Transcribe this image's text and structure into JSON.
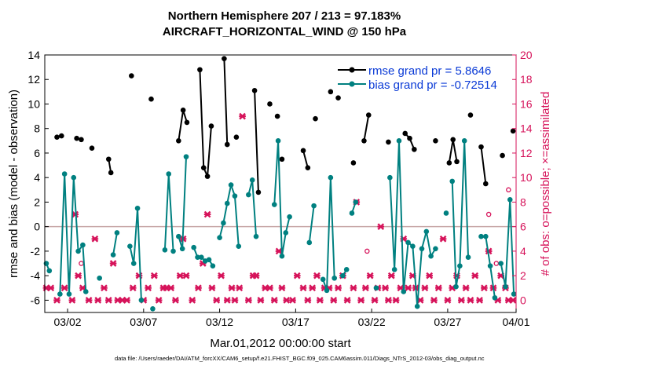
{
  "chart_data": {
    "type": "line",
    "title": "Northern Hemisphere 207 / 213 = 97.183%",
    "subtitle": "AIRCRAFT_HORIZONTAL_WIND @ 150 hPa",
    "xlabel": "Mar.01,2012 00:00:00 start",
    "ylabel": "rmse and bias (model - observation)",
    "ylabel_right": "# of obs: o=possible; ×=assimilated",
    "x_range": [
      0.5,
      31.5
    ],
    "ylim": [
      -7,
      14
    ],
    "ylim_right": [
      -1,
      20
    ],
    "x_ticks": [
      {
        "x": 2,
        "label": "03/02"
      },
      {
        "x": 7,
        "label": "03/07"
      },
      {
        "x": 12,
        "label": "03/12"
      },
      {
        "x": 17,
        "label": "03/17"
      },
      {
        "x": 22,
        "label": "03/22"
      },
      {
        "x": 27,
        "label": "03/27"
      },
      {
        "x": 31.5,
        "label": "04/01"
      }
    ],
    "y_ticks_left": [
      "14",
      "12",
      "10",
      "8",
      "6",
      "4",
      "2",
      "0",
      "-2",
      "-4",
      "-6"
    ],
    "y_tick_values_left": [
      14,
      12,
      10,
      8,
      6,
      4,
      2,
      0,
      -2,
      -4,
      -6
    ],
    "y_ticks_right": [
      "20",
      "18",
      "16",
      "14",
      "12",
      "10",
      "8",
      "6",
      "4",
      "2",
      "0"
    ],
    "y_tick_values_right": [
      20,
      18,
      16,
      14,
      12,
      10,
      8,
      6,
      4,
      2,
      0
    ],
    "legend_position": "top-right",
    "zero_line": true,
    "colors": {
      "rmse": "#000000",
      "bias": "#008080",
      "obs": "#d6135a",
      "zero_line": "#c8a8a8",
      "right_axis": "#d6135a"
    },
    "series": [
      {
        "name": "rmse grand pr = 5.8646",
        "color": "#000000",
        "segments": [
          [
            [
              1.3,
              7.3
            ],
            [
              1.6,
              7.4
            ]
          ],
          [
            [
              2.6,
              7.2
            ],
            [
              2.9,
              7.1
            ]
          ],
          [
            [
              3.6,
              6.4
            ]
          ],
          [
            [
              4.7,
              5.5
            ],
            [
              4.85,
              4.4
            ]
          ],
          [
            [
              6.2,
              12.3
            ]
          ],
          [
            [
              7.5,
              10.4
            ]
          ],
          [
            [
              9.3,
              7.0
            ],
            [
              9.6,
              9.5
            ],
            [
              9.85,
              8.5
            ]
          ],
          [
            [
              10.7,
              12.8
            ],
            [
              10.95,
              4.8
            ],
            [
              11.2,
              4.1
            ],
            [
              11.45,
              8.2
            ]
          ],
          [
            [
              12.3,
              13.7
            ],
            [
              12.5,
              6.7
            ]
          ],
          [
            [
              13.1,
              7.3
            ]
          ],
          [
            [
              14.3,
              11.1
            ],
            [
              14.55,
              2.8
            ]
          ],
          [
            [
              15.3,
              10.0
            ]
          ],
          [
            [
              15.8,
              9.0
            ]
          ],
          [
            [
              16.1,
              5.5
            ]
          ],
          [
            [
              17.5,
              6.2
            ],
            [
              17.8,
              4.8
            ]
          ],
          [
            [
              18.3,
              8.8
            ]
          ],
          [
            [
              19.3,
              11.0
            ]
          ],
          [
            [
              19.8,
              10.5
            ]
          ],
          [
            [
              20.8,
              5.2
            ]
          ],
          [
            [
              21.5,
              7.0
            ],
            [
              21.8,
              9.1
            ]
          ],
          [
            [
              23.1,
              6.9
            ]
          ],
          [
            [
              24.2,
              7.6
            ],
            [
              24.5,
              7.2
            ],
            [
              24.8,
              6.3
            ]
          ],
          [
            [
              26.2,
              7.0
            ]
          ],
          [
            [
              27.1,
              5.2
            ],
            [
              27.35,
              7.1
            ],
            [
              27.6,
              5.3
            ]
          ],
          [
            [
              28.5,
              9.1
            ]
          ],
          [
            [
              29.2,
              6.5
            ],
            [
              29.5,
              3.5
            ]
          ],
          [
            [
              30.6,
              5.8
            ]
          ],
          [
            [
              31.3,
              7.8
            ]
          ]
        ]
      },
      {
        "name": "bias grand pr = -0.72514",
        "color": "#008080",
        "segments": [
          [
            [
              0.6,
              -3.0
            ],
            [
              0.8,
              -3.6
            ]
          ],
          [
            [
              1.5,
              -5.5
            ],
            [
              1.8,
              4.3
            ],
            [
              2.1,
              -5.5
            ],
            [
              2.4,
              4.0
            ],
            [
              2.7,
              -2.0
            ],
            [
              3.0,
              -1.5
            ],
            [
              3.2,
              -5.3
            ]
          ],
          [
            [
              4.1,
              -4.2
            ]
          ],
          [
            [
              5.0,
              -2.3
            ],
            [
              5.25,
              -0.5
            ]
          ],
          [
            [
              6.1,
              -1.6
            ],
            [
              6.35,
              -3.0
            ],
            [
              6.6,
              1.5
            ],
            [
              6.85,
              -6.0
            ]
          ],
          [
            [
              7.6,
              -6.7
            ]
          ],
          [
            [
              8.4,
              -1.9
            ],
            [
              8.65,
              4.3
            ],
            [
              8.95,
              -2.0
            ]
          ],
          [
            [
              9.3,
              -0.8
            ],
            [
              9.55,
              -1.8
            ],
            [
              9.8,
              5.7
            ]
          ],
          [
            [
              10.3,
              -1.7
            ],
            [
              10.55,
              -2.5
            ],
            [
              10.8,
              -2.5
            ],
            [
              11.05,
              -2.8
            ],
            [
              11.3,
              -2.7
            ],
            [
              11.55,
              -3.2
            ]
          ],
          [
            [
              12.0,
              -0.9
            ],
            [
              12.25,
              0.3
            ],
            [
              12.5,
              1.9
            ],
            [
              12.75,
              3.4
            ],
            [
              13.0,
              2.5
            ],
            [
              13.25,
              -1.6
            ]
          ],
          [
            [
              13.9,
              2.6
            ],
            [
              14.15,
              3.8
            ],
            [
              14.4,
              -0.8
            ]
          ],
          [
            [
              15.6,
              1.8
            ],
            [
              15.85,
              7.0
            ],
            [
              16.1,
              -2.4
            ],
            [
              16.35,
              -0.5
            ],
            [
              16.6,
              0.8
            ]
          ],
          [
            [
              17.9,
              -1.3
            ],
            [
              18.2,
              1.7
            ]
          ],
          [
            [
              18.8,
              -4.3
            ],
            [
              19.05,
              -5.2
            ],
            [
              19.3,
              4.0
            ],
            [
              19.55,
              -4.2
            ]
          ],
          [
            [
              20.1,
              -4.0
            ],
            [
              20.35,
              -3.5
            ]
          ],
          [
            [
              20.7,
              1.1
            ],
            [
              20.95,
              2.0
            ]
          ],
          [
            [
              22.3,
              -5.0
            ]
          ],
          [
            [
              23.2,
              4.0
            ],
            [
              23.5,
              -3.5
            ],
            [
              23.8,
              7.0
            ],
            [
              24.1,
              -5.3
            ],
            [
              24.4,
              -1.3
            ],
            [
              24.7,
              -1.6
            ],
            [
              25.0,
              -6.5
            ],
            [
              25.3,
              -1.8
            ],
            [
              25.6,
              -0.4
            ],
            [
              25.9,
              -2.4
            ],
            [
              26.2,
              -1.8
            ]
          ],
          [
            [
              26.9,
              1.1
            ]
          ],
          [
            [
              27.3,
              3.7
            ],
            [
              27.55,
              -4.9
            ],
            [
              27.8,
              -3.2
            ],
            [
              28.1,
              7.0
            ],
            [
              28.35,
              -2.5
            ]
          ],
          [
            [
              29.2,
              -0.8
            ],
            [
              29.5,
              -0.8
            ],
            [
              29.8,
              -3.2
            ],
            [
              30.1,
              -5.8
            ]
          ],
          [
            [
              30.5,
              -3.0
            ],
            [
              30.8,
              -4.9
            ],
            [
              31.1,
              2.2
            ],
            [
              31.35,
              -5.5
            ]
          ]
        ]
      }
    ],
    "obs_assimilated": [
      [
        0.6,
        1
      ],
      [
        0.9,
        1
      ],
      [
        1.3,
        0
      ],
      [
        1.8,
        1
      ],
      [
        2.3,
        0
      ],
      [
        2.5,
        7
      ],
      [
        2.7,
        2
      ],
      [
        3.0,
        1
      ],
      [
        3.4,
        0
      ],
      [
        3.8,
        5
      ],
      [
        4.0,
        0
      ],
      [
        4.4,
        1
      ],
      [
        4.7,
        0
      ],
      [
        5.0,
        3
      ],
      [
        5.3,
        0
      ],
      [
        5.6,
        0
      ],
      [
        5.9,
        0
      ],
      [
        6.3,
        1
      ],
      [
        6.7,
        2
      ],
      [
        7.0,
        0
      ],
      [
        7.3,
        1
      ],
      [
        7.7,
        2
      ],
      [
        8.0,
        0
      ],
      [
        8.3,
        1
      ],
      [
        8.5,
        1
      ],
      [
        8.8,
        1
      ],
      [
        9.1,
        0
      ],
      [
        9.4,
        2
      ],
      [
        9.6,
        5
      ],
      [
        9.8,
        2
      ],
      [
        10.2,
        0
      ],
      [
        10.6,
        1
      ],
      [
        10.9,
        3
      ],
      [
        11.2,
        7
      ],
      [
        11.5,
        1
      ],
      [
        11.8,
        0
      ],
      [
        12.1,
        2
      ],
      [
        12.5,
        0
      ],
      [
        12.8,
        1
      ],
      [
        13.0,
        0
      ],
      [
        13.3,
        1
      ],
      [
        13.5,
        15
      ],
      [
        13.9,
        0
      ],
      [
        14.2,
        2
      ],
      [
        14.4,
        2
      ],
      [
        14.7,
        0
      ],
      [
        15.0,
        1
      ],
      [
        15.3,
        1
      ],
      [
        15.6,
        0
      ],
      [
        15.9,
        4
      ],
      [
        16.1,
        1
      ],
      [
        16.4,
        0
      ],
      [
        16.8,
        0
      ],
      [
        17.1,
        2
      ],
      [
        17.5,
        1
      ],
      [
        17.8,
        0
      ],
      [
        18.1,
        1
      ],
      [
        18.4,
        2
      ],
      [
        18.6,
        0
      ],
      [
        18.9,
        1
      ],
      [
        19.2,
        1
      ],
      [
        19.5,
        0
      ],
      [
        19.8,
        1
      ],
      [
        20.1,
        2
      ],
      [
        20.4,
        0
      ],
      [
        20.8,
        1
      ],
      [
        21.0,
        8
      ],
      [
        21.3,
        0
      ],
      [
        21.6,
        1
      ],
      [
        21.9,
        2
      ],
      [
        22.2,
        0
      ],
      [
        22.4,
        1
      ],
      [
        22.6,
        6
      ],
      [
        22.9,
        1
      ],
      [
        23.1,
        0
      ],
      [
        23.3,
        2
      ],
      [
        23.6,
        0
      ],
      [
        23.9,
        1
      ],
      [
        24.1,
        5
      ],
      [
        24.4,
        1
      ],
      [
        24.7,
        2
      ],
      [
        24.9,
        1
      ],
      [
        25.2,
        0
      ],
      [
        25.5,
        1
      ],
      [
        25.8,
        2
      ],
      [
        26.1,
        0
      ],
      [
        26.4,
        1
      ],
      [
        26.7,
        5
      ],
      [
        27.0,
        0
      ],
      [
        27.3,
        1
      ],
      [
        27.6,
        2
      ],
      [
        27.9,
        0
      ],
      [
        28.2,
        1
      ],
      [
        28.5,
        0
      ],
      [
        28.8,
        2
      ],
      [
        29.1,
        0
      ],
      [
        29.4,
        1
      ],
      [
        29.7,
        4
      ],
      [
        30.0,
        1
      ],
      [
        30.3,
        0
      ],
      [
        30.5,
        2
      ],
      [
        30.8,
        1
      ],
      [
        31.0,
        0
      ],
      [
        31.3,
        0
      ]
    ],
    "obs_possible": [
      [
        2.9,
        3
      ],
      [
        21.7,
        4
      ],
      [
        29.7,
        7
      ],
      [
        30.2,
        3
      ],
      [
        31.0,
        9
      ]
    ]
  },
  "footer": {
    "text": "data file: /Users/raeder/DAI/ATM_forcXX/CAM6_setup/f.e21.FHIST_BGC.f09_025.CAM6assim.011/Diags_NTrS_2012-03/obs_diag_output.nc"
  }
}
